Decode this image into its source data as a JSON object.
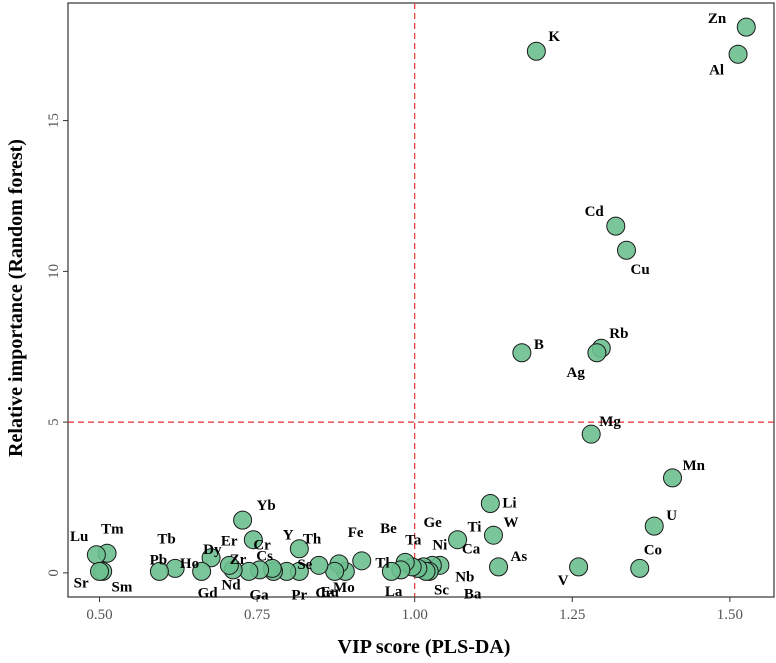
{
  "colors": {
    "point_fill": "#6cbf8f",
    "point_stroke": "#1a1a1a",
    "threshold_line": "#e03030",
    "panel_border": "#333333"
  },
  "chart_data": {
    "type": "scatter",
    "xlabel": "VIP score (PLS-DA)",
    "ylabel": "Relative importance (Random forest)",
    "xlim": [
      0.45,
      1.57
    ],
    "ylim": [
      -0.8,
      18.9
    ],
    "xticks": [
      0.5,
      0.75,
      1.0,
      1.25,
      1.5
    ],
    "xtick_labels": [
      "0.50",
      "0.75",
      "1.00",
      "1.25",
      "1.50"
    ],
    "yticks": [
      0,
      5,
      10,
      15
    ],
    "ytick_labels": [
      "0",
      "5",
      "10",
      "15"
    ],
    "grid": false,
    "legend": "none",
    "thresholds": {
      "x": 1.0,
      "y": 5
    },
    "points": [
      {
        "label": "Zn",
        "x": 1.526,
        "y": 18.1
      },
      {
        "label": "Al",
        "x": 1.513,
        "y": 17.2
      },
      {
        "label": "K",
        "x": 1.193,
        "y": 17.3
      },
      {
        "label": "Cd",
        "x": 1.319,
        "y": 11.5
      },
      {
        "label": "Cu",
        "x": 1.336,
        "y": 10.7
      },
      {
        "label": "B",
        "x": 1.17,
        "y": 7.3
      },
      {
        "label": "Rb",
        "x": 1.296,
        "y": 7.45
      },
      {
        "label": "Ag",
        "x": 1.289,
        "y": 7.3
      },
      {
        "label": "Mg",
        "x": 1.28,
        "y": 4.6
      },
      {
        "label": "Mn",
        "x": 1.409,
        "y": 3.15
      },
      {
        "label": "U",
        "x": 1.38,
        "y": 1.55
      },
      {
        "label": "Co",
        "x": 1.357,
        "y": 0.15
      },
      {
        "label": "V",
        "x": 1.26,
        "y": 0.2
      },
      {
        "label": "Li",
        "x": 1.12,
        "y": 2.3
      },
      {
        "label": "W",
        "x": 1.125,
        "y": 1.25
      },
      {
        "label": "Ti",
        "x": 1.068,
        "y": 1.1
      },
      {
        "label": "As",
        "x": 1.133,
        "y": 0.2
      },
      {
        "label": "Ca",
        "x": 1.04,
        "y": 0.25
      },
      {
        "label": "Ni",
        "x": 1.028,
        "y": 0.25
      },
      {
        "label": "Ge",
        "x": 1.014,
        "y": 0.2
      },
      {
        "label": "Nb",
        "x": 1.023,
        "y": 0.05
      },
      {
        "label": "Sc",
        "x": 1.018,
        "y": 0.05
      },
      {
        "label": "Ba",
        "x": 1.005,
        "y": 0.15
      },
      {
        "label": "Be",
        "x": 0.996,
        "y": 0.2
      },
      {
        "label": "Ta",
        "x": 0.985,
        "y": 0.35
      },
      {
        "label": "La",
        "x": 0.978,
        "y": 0.1
      },
      {
        "label": "Tl",
        "x": 0.963,
        "y": 0.05
      },
      {
        "label": "Fe",
        "x": 0.916,
        "y": 0.4
      },
      {
        "label": "Ce",
        "x": 0.89,
        "y": 0.05
      },
      {
        "label": "Mo",
        "x": 0.88,
        "y": 0.3
      },
      {
        "label": "Eu",
        "x": 0.873,
        "y": 0.05
      },
      {
        "label": "Th",
        "x": 0.848,
        "y": 0.25
      },
      {
        "label": "Se",
        "x": 0.817,
        "y": 0.8
      },
      {
        "label": "Pr",
        "x": 0.817,
        "y": 0.05
      },
      {
        "label": "Y",
        "x": 0.797,
        "y": 0.05
      },
      {
        "label": "Ga",
        "x": 0.776,
        "y": 0.05
      },
      {
        "label": "Cs",
        "x": 0.774,
        "y": 0.15
      },
      {
        "label": "Cr",
        "x": 0.744,
        "y": 1.1
      },
      {
        "label": "Yb",
        "x": 0.727,
        "y": 1.75
      },
      {
        "label": "Zr",
        "x": 0.754,
        "y": 0.1
      },
      {
        "label": "Er",
        "x": 0.737,
        "y": 0.05
      },
      {
        "label": "Dy",
        "x": 0.712,
        "y": 0.1
      },
      {
        "label": "Nd",
        "x": 0.706,
        "y": 0.25
      },
      {
        "label": "Ho",
        "x": 0.677,
        "y": 0.5
      },
      {
        "label": "Gd",
        "x": 0.662,
        "y": 0.05
      },
      {
        "label": "Pb",
        "x": 0.62,
        "y": 0.15
      },
      {
        "label": "Tb",
        "x": 0.595,
        "y": 0.05
      },
      {
        "label": "Tm",
        "x": 0.512,
        "y": 0.65
      },
      {
        "label": "Lu",
        "x": 0.495,
        "y": 0.6
      },
      {
        "label": "Sr",
        "x": 0.505,
        "y": 0.05
      },
      {
        "label": "Sm",
        "x": 0.5,
        "y": 0.05
      }
    ]
  }
}
